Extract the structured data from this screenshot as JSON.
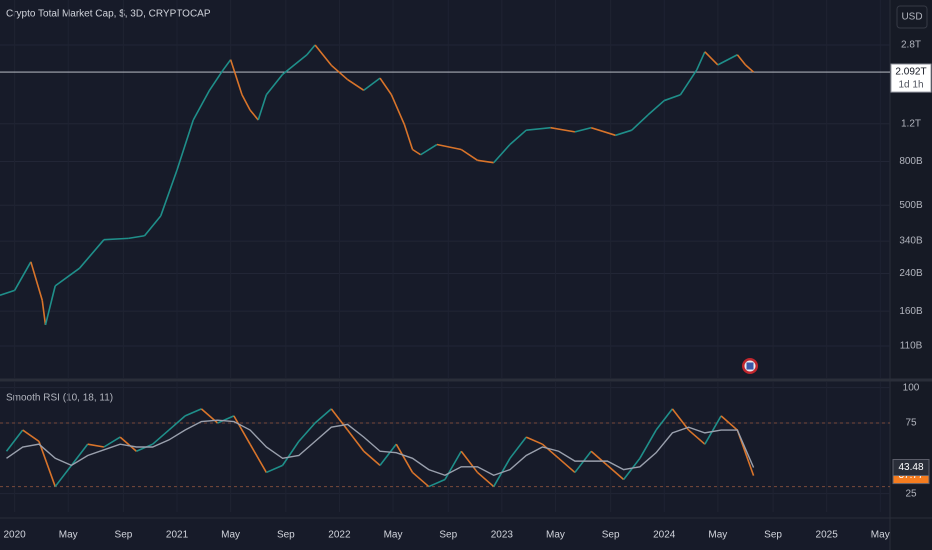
{
  "chart_data": [
    {
      "type": "line",
      "title": "Crypto Total Market Cap, $, 3D, CRYPTOCAP",
      "currency": "USD",
      "countdown": "1d 1h",
      "log_scale": true,
      "grid": true,
      "up_color": "#1f8f8a",
      "down_color": "#d9742a",
      "x": [
        2019.91,
        2020.0,
        2020.1,
        2020.17,
        2020.19,
        2020.25,
        2020.4,
        2020.55,
        2020.7,
        2020.8,
        2020.9,
        2021.0,
        2021.1,
        2021.2,
        2021.28,
        2021.33,
        2021.4,
        2021.45,
        2021.5,
        2021.55,
        2021.65,
        2021.8,
        2021.85,
        2021.95,
        2022.05,
        2022.15,
        2022.25,
        2022.32,
        2022.4,
        2022.45,
        2022.5,
        2022.6,
        2022.75,
        2022.85,
        2022.95,
        2023.05,
        2023.15,
        2023.3,
        2023.45,
        2023.55,
        2023.7,
        2023.8,
        2023.9,
        2024.0,
        2024.1,
        2024.2,
        2024.25,
        2024.33,
        2024.45,
        2024.5,
        2024.55
      ],
      "values": [
        190,
        200,
        272,
        180,
        138,
        210,
        254,
        345,
        350,
        360,
        446,
        730,
        1250,
        1720,
        2120,
        2390,
        1640,
        1390,
        1250,
        1640,
        2040,
        2520,
        2800,
        2250,
        1930,
        1720,
        1960,
        1640,
        1190,
        910,
        860,
        960,
        910,
        810,
        790,
        960,
        1120,
        1150,
        1100,
        1150,
        1060,
        1120,
        1320,
        1540,
        1640,
        2140,
        2600,
        2260,
        2520,
        2260,
        2092
      ],
      "last_price": {
        "value": 2092,
        "label": "2.092T"
      },
      "xlim": [
        2019.91,
        2025.39
      ],
      "xticks": [
        {
          "value": 2020.0,
          "label": "2020"
        },
        {
          "value": 2020.33,
          "label": "May"
        },
        {
          "value": 2020.67,
          "label": "Sep"
        },
        {
          "value": 2021.0,
          "label": "2021"
        },
        {
          "value": 2021.33,
          "label": "May"
        },
        {
          "value": 2021.67,
          "label": "Sep"
        },
        {
          "value": 2022.0,
          "label": "2022"
        },
        {
          "value": 2022.33,
          "label": "May"
        },
        {
          "value": 2022.67,
          "label": "Sep"
        },
        {
          "value": 2023.0,
          "label": "2023"
        },
        {
          "value": 2023.33,
          "label": "May"
        },
        {
          "value": 2023.67,
          "label": "Sep"
        },
        {
          "value": 2024.0,
          "label": "2024"
        },
        {
          "value": 2024.33,
          "label": "May"
        },
        {
          "value": 2024.67,
          "label": "Sep"
        },
        {
          "value": 2025.0,
          "label": "2025"
        },
        {
          "value": 2025.33,
          "label": "May"
        }
      ],
      "ylim": [
        78,
        4540
      ],
      "yticks": [
        {
          "value": 110,
          "label": "110B"
        },
        {
          "value": 160,
          "label": "160B"
        },
        {
          "value": 240,
          "label": "240B"
        },
        {
          "value": 340,
          "label": "340B"
        },
        {
          "value": 500,
          "label": "500B"
        },
        {
          "value": 800,
          "label": "800B"
        },
        {
          "value": 1200,
          "label": "1.2T"
        },
        {
          "value": 2800,
          "label": "2.8T"
        }
      ]
    },
    {
      "type": "rsi",
      "title": "Smooth RSI (10, 18, 11)",
      "grid": true,
      "x": [
        2019.95,
        2020.05,
        2020.15,
        2020.25,
        2020.35,
        2020.45,
        2020.55,
        2020.65,
        2020.75,
        2020.85,
        2020.95,
        2021.05,
        2021.15,
        2021.25,
        2021.35,
        2021.45,
        2021.55,
        2021.65,
        2021.75,
        2021.85,
        2021.95,
        2022.05,
        2022.15,
        2022.25,
        2022.35,
        2022.45,
        2022.55,
        2022.65,
        2022.75,
        2022.85,
        2022.95,
        2023.05,
        2023.15,
        2023.25,
        2023.35,
        2023.45,
        2023.55,
        2023.65,
        2023.75,
        2023.85,
        2023.95,
        2024.05,
        2024.15,
        2024.25,
        2024.35,
        2024.45,
        2024.55
      ],
      "series": [
        {
          "color": "#1f8f8a",
          "down_color": "#d9742a",
          "label_color": "#f57c1f",
          "values": [
            55,
            70,
            62,
            30,
            45,
            60,
            58,
            65,
            55,
            60,
            70,
            80,
            85,
            75,
            80,
            60,
            40,
            45,
            62,
            75,
            85,
            70,
            55,
            45,
            60,
            40,
            30,
            35,
            55,
            40,
            30,
            50,
            65,
            60,
            50,
            40,
            55,
            45,
            35,
            50,
            70,
            85,
            70,
            60,
            80,
            70,
            37.77
          ]
        },
        {
          "color": "#9aa0ad",
          "label_color": "#ffffff",
          "values": [
            50,
            58,
            60,
            50,
            45,
            52,
            56,
            60,
            58,
            58,
            63,
            70,
            76,
            77,
            76,
            70,
            58,
            50,
            52,
            62,
            72,
            74,
            65,
            55,
            54,
            50,
            42,
            38,
            44,
            44,
            38,
            42,
            52,
            58,
            55,
            48,
            48,
            48,
            42,
            44,
            54,
            68,
            72,
            68,
            70,
            70,
            43.48
          ]
        }
      ],
      "hlines": [
        75,
        30
      ],
      "xlim": [
        2019.91,
        2025.39
      ],
      "ylim": [
        12,
        104
      ],
      "yticks": [
        25,
        75,
        100
      ]
    }
  ]
}
